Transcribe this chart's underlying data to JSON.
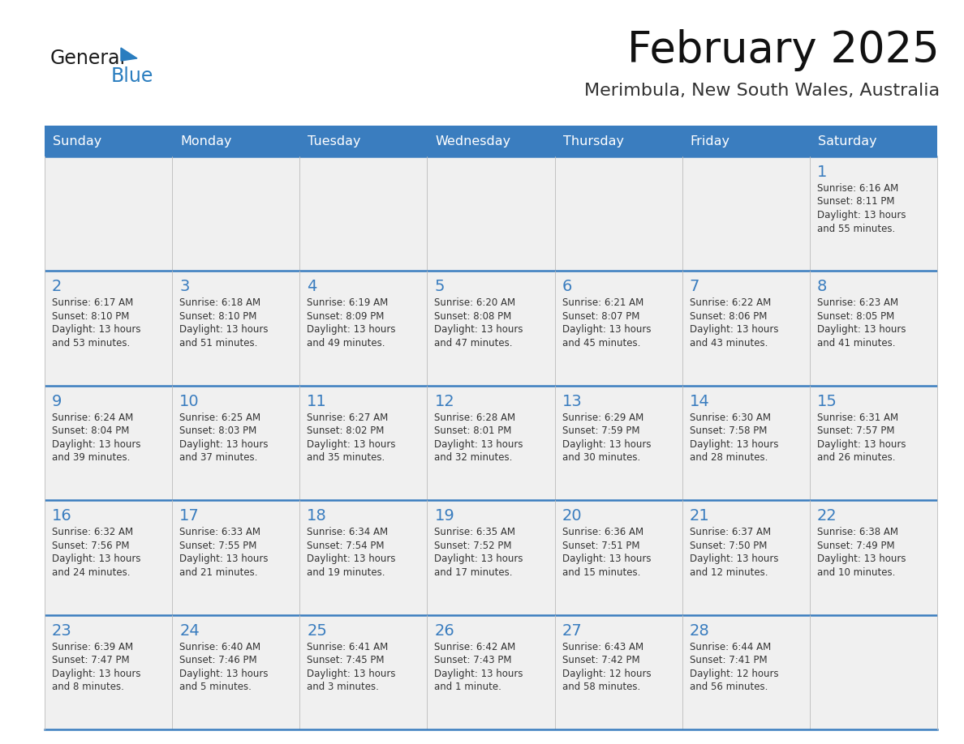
{
  "title": "February 2025",
  "subtitle": "Merimbula, New South Wales, Australia",
  "days_of_week": [
    "Sunday",
    "Monday",
    "Tuesday",
    "Wednesday",
    "Thursday",
    "Friday",
    "Saturday"
  ],
  "header_bg": "#3a7dbf",
  "header_text": "#ffffff",
  "cell_bg": "#f0f0f0",
  "divider_color": "#3a7dbf",
  "text_color": "#333333",
  "day_num_color": "#3a7dbf",
  "logo_general_color": "#1a1a1a",
  "logo_blue_color": "#2a7dbf",
  "logo_triangle_color": "#2a7dbf",
  "title_color": "#111111",
  "subtitle_color": "#333333",
  "calendar": [
    [
      {
        "day": null,
        "lines": []
      },
      {
        "day": null,
        "lines": []
      },
      {
        "day": null,
        "lines": []
      },
      {
        "day": null,
        "lines": []
      },
      {
        "day": null,
        "lines": []
      },
      {
        "day": null,
        "lines": []
      },
      {
        "day": 1,
        "lines": [
          "Sunrise: 6:16 AM",
          "Sunset: 8:11 PM",
          "Daylight: 13 hours",
          "and 55 minutes."
        ]
      }
    ],
    [
      {
        "day": 2,
        "lines": [
          "Sunrise: 6:17 AM",
          "Sunset: 8:10 PM",
          "Daylight: 13 hours",
          "and 53 minutes."
        ]
      },
      {
        "day": 3,
        "lines": [
          "Sunrise: 6:18 AM",
          "Sunset: 8:10 PM",
          "Daylight: 13 hours",
          "and 51 minutes."
        ]
      },
      {
        "day": 4,
        "lines": [
          "Sunrise: 6:19 AM",
          "Sunset: 8:09 PM",
          "Daylight: 13 hours",
          "and 49 minutes."
        ]
      },
      {
        "day": 5,
        "lines": [
          "Sunrise: 6:20 AM",
          "Sunset: 8:08 PM",
          "Daylight: 13 hours",
          "and 47 minutes."
        ]
      },
      {
        "day": 6,
        "lines": [
          "Sunrise: 6:21 AM",
          "Sunset: 8:07 PM",
          "Daylight: 13 hours",
          "and 45 minutes."
        ]
      },
      {
        "day": 7,
        "lines": [
          "Sunrise: 6:22 AM",
          "Sunset: 8:06 PM",
          "Daylight: 13 hours",
          "and 43 minutes."
        ]
      },
      {
        "day": 8,
        "lines": [
          "Sunrise: 6:23 AM",
          "Sunset: 8:05 PM",
          "Daylight: 13 hours",
          "and 41 minutes."
        ]
      }
    ],
    [
      {
        "day": 9,
        "lines": [
          "Sunrise: 6:24 AM",
          "Sunset: 8:04 PM",
          "Daylight: 13 hours",
          "and 39 minutes."
        ]
      },
      {
        "day": 10,
        "lines": [
          "Sunrise: 6:25 AM",
          "Sunset: 8:03 PM",
          "Daylight: 13 hours",
          "and 37 minutes."
        ]
      },
      {
        "day": 11,
        "lines": [
          "Sunrise: 6:27 AM",
          "Sunset: 8:02 PM",
          "Daylight: 13 hours",
          "and 35 minutes."
        ]
      },
      {
        "day": 12,
        "lines": [
          "Sunrise: 6:28 AM",
          "Sunset: 8:01 PM",
          "Daylight: 13 hours",
          "and 32 minutes."
        ]
      },
      {
        "day": 13,
        "lines": [
          "Sunrise: 6:29 AM",
          "Sunset: 7:59 PM",
          "Daylight: 13 hours",
          "and 30 minutes."
        ]
      },
      {
        "day": 14,
        "lines": [
          "Sunrise: 6:30 AM",
          "Sunset: 7:58 PM",
          "Daylight: 13 hours",
          "and 28 minutes."
        ]
      },
      {
        "day": 15,
        "lines": [
          "Sunrise: 6:31 AM",
          "Sunset: 7:57 PM",
          "Daylight: 13 hours",
          "and 26 minutes."
        ]
      }
    ],
    [
      {
        "day": 16,
        "lines": [
          "Sunrise: 6:32 AM",
          "Sunset: 7:56 PM",
          "Daylight: 13 hours",
          "and 24 minutes."
        ]
      },
      {
        "day": 17,
        "lines": [
          "Sunrise: 6:33 AM",
          "Sunset: 7:55 PM",
          "Daylight: 13 hours",
          "and 21 minutes."
        ]
      },
      {
        "day": 18,
        "lines": [
          "Sunrise: 6:34 AM",
          "Sunset: 7:54 PM",
          "Daylight: 13 hours",
          "and 19 minutes."
        ]
      },
      {
        "day": 19,
        "lines": [
          "Sunrise: 6:35 AM",
          "Sunset: 7:52 PM",
          "Daylight: 13 hours",
          "and 17 minutes."
        ]
      },
      {
        "day": 20,
        "lines": [
          "Sunrise: 6:36 AM",
          "Sunset: 7:51 PM",
          "Daylight: 13 hours",
          "and 15 minutes."
        ]
      },
      {
        "day": 21,
        "lines": [
          "Sunrise: 6:37 AM",
          "Sunset: 7:50 PM",
          "Daylight: 13 hours",
          "and 12 minutes."
        ]
      },
      {
        "day": 22,
        "lines": [
          "Sunrise: 6:38 AM",
          "Sunset: 7:49 PM",
          "Daylight: 13 hours",
          "and 10 minutes."
        ]
      }
    ],
    [
      {
        "day": 23,
        "lines": [
          "Sunrise: 6:39 AM",
          "Sunset: 7:47 PM",
          "Daylight: 13 hours",
          "and 8 minutes."
        ]
      },
      {
        "day": 24,
        "lines": [
          "Sunrise: 6:40 AM",
          "Sunset: 7:46 PM",
          "Daylight: 13 hours",
          "and 5 minutes."
        ]
      },
      {
        "day": 25,
        "lines": [
          "Sunrise: 6:41 AM",
          "Sunset: 7:45 PM",
          "Daylight: 13 hours",
          "and 3 minutes."
        ]
      },
      {
        "day": 26,
        "lines": [
          "Sunrise: 6:42 AM",
          "Sunset: 7:43 PM",
          "Daylight: 13 hours",
          "and 1 minute."
        ]
      },
      {
        "day": 27,
        "lines": [
          "Sunrise: 6:43 AM",
          "Sunset: 7:42 PM",
          "Daylight: 12 hours",
          "and 58 minutes."
        ]
      },
      {
        "day": 28,
        "lines": [
          "Sunrise: 6:44 AM",
          "Sunset: 7:41 PM",
          "Daylight: 12 hours",
          "and 56 minutes."
        ]
      },
      {
        "day": null,
        "lines": []
      }
    ]
  ]
}
